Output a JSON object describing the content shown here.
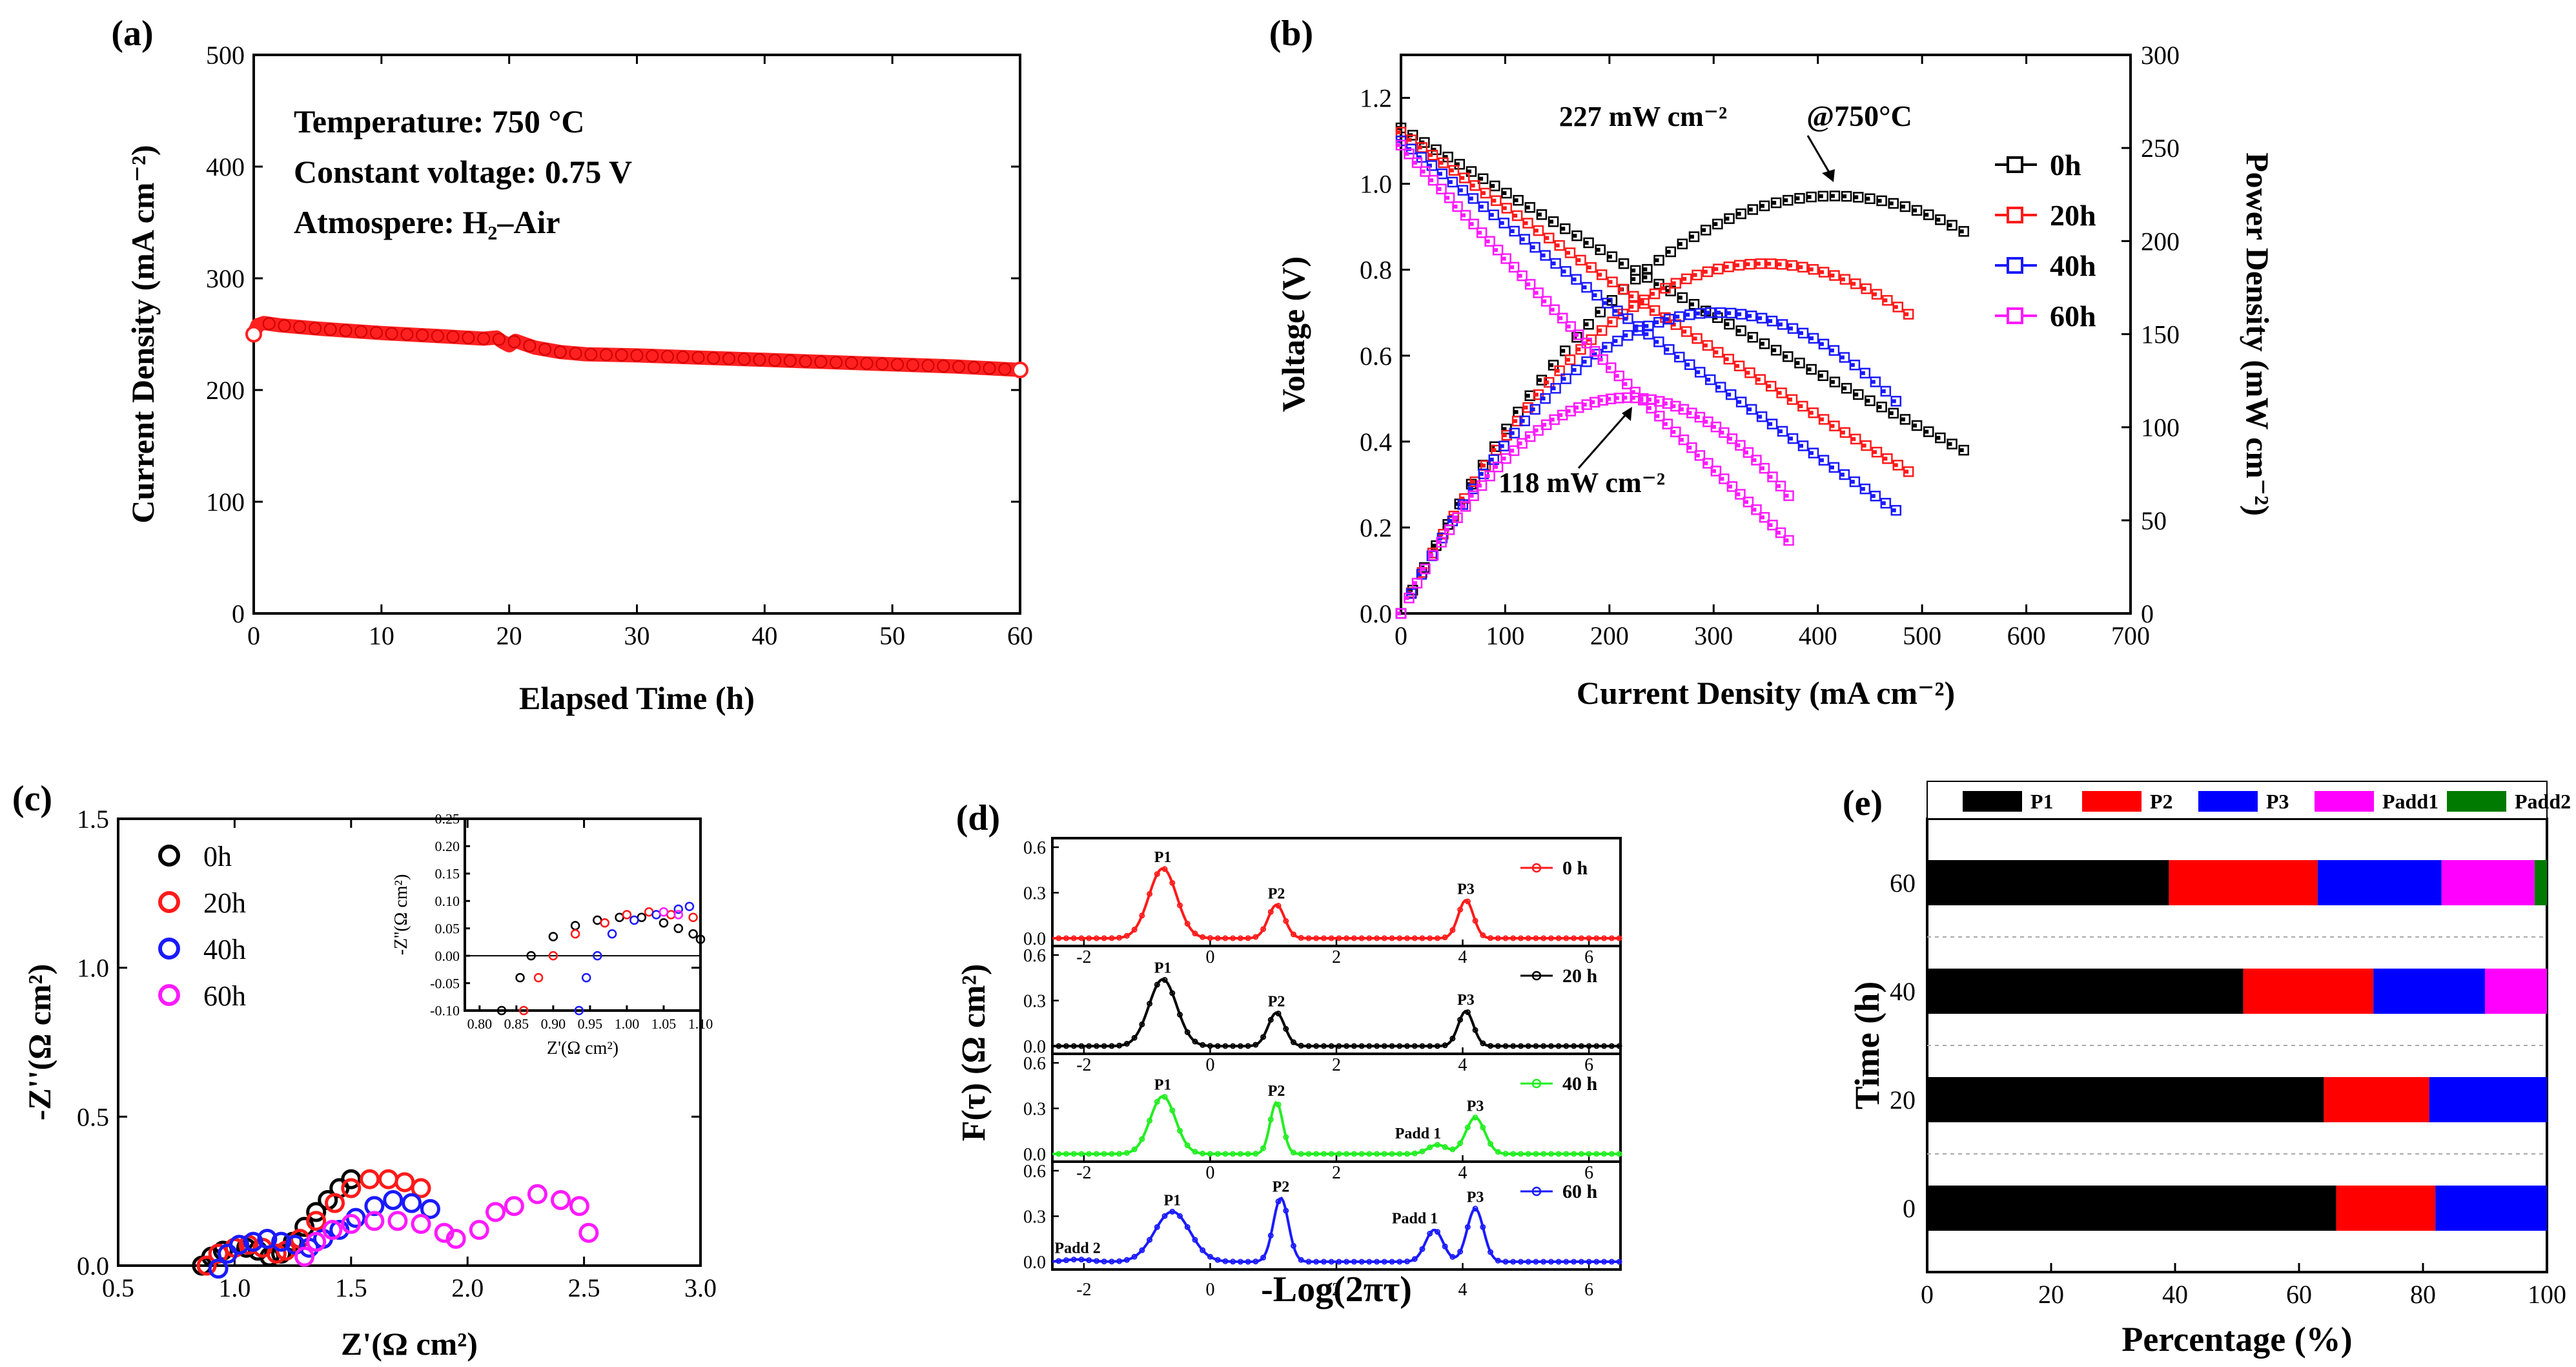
{
  "panels": {
    "a": {
      "label": "(a)",
      "xlabel": "Elapsed Time (h)",
      "ylabel": "Current Density (mA cm⁻²)",
      "xlim": [
        0,
        60
      ],
      "ylim": [
        0,
        500
      ],
      "xticks": [
        0,
        10,
        20,
        30,
        40,
        50,
        60
      ],
      "yticks": [
        0,
        100,
        200,
        300,
        400,
        500
      ],
      "annotations": [
        "Temperature: 750 °C",
        "Constant voltage: 0.75 V",
        "Atmospere: H₂–Air"
      ],
      "color": "#ff2020",
      "series": {
        "x": [
          0,
          0.3,
          0.8,
          2,
          5,
          10,
          15,
          18,
          19,
          19.5,
          20,
          20.5,
          21,
          22,
          24,
          26,
          30,
          35,
          40,
          45,
          50,
          55,
          60
        ],
        "y": [
          250,
          258,
          260,
          258,
          255,
          251,
          248,
          246,
          247,
          243,
          240,
          244,
          242,
          238,
          234,
          232,
          231,
          229,
          227,
          225,
          223,
          221,
          218
        ]
      }
    },
    "b": {
      "label": "(b)",
      "xlabel": "Current Density (mA cm⁻²)",
      "ylabel_left": "Voltage (V)",
      "ylabel_right": "Power Density (mW cm⁻²)",
      "xlim": [
        0,
        700
      ],
      "ylim_left": [
        0,
        1.3
      ],
      "ylim_right": [
        0,
        300
      ],
      "xticks": [
        0,
        100,
        200,
        300,
        400,
        500,
        600,
        700
      ],
      "yticks_left": [
        0.0,
        0.2,
        0.4,
        0.6,
        0.8,
        1.0,
        1.2
      ],
      "yticks_right": [
        0,
        50,
        100,
        150,
        200,
        250,
        300
      ],
      "legend_title": "@750°C",
      "annotations": [
        "227 mW cm⁻²",
        "118 mW cm⁻²"
      ],
      "series": [
        {
          "name": "0h",
          "color": "#000000",
          "imax": 540,
          "ocv": 1.13,
          "vend": 0.38
        },
        {
          "name": "20h",
          "color": "#ff1a1a",
          "imax": 487,
          "ocv": 1.12,
          "vend": 0.33
        },
        {
          "name": "40h",
          "color": "#1a1aff",
          "imax": 475,
          "ocv": 1.1,
          "vend": 0.24
        },
        {
          "name": "60h",
          "color": "#ff1aff",
          "imax": 372,
          "ocv": 1.09,
          "vend": 0.17
        }
      ]
    },
    "c": {
      "label": "(c)",
      "xlabel": "Z'(Ω cm²)",
      "ylabel": "-Z''(Ω cm²)",
      "xlim": [
        0.5,
        3.0
      ],
      "ylim": [
        0,
        1.5
      ],
      "xticks": [
        0.5,
        1.0,
        1.5,
        2.0,
        2.5,
        3.0
      ],
      "yticks": [
        0.0,
        0.5,
        1.0,
        1.5
      ],
      "inset": {
        "xlabel": "Z'(Ω cm²)",
        "ylabel": "-Z''(Ω cm²)",
        "xlim": [
          0.78,
          1.1
        ],
        "ylim": [
          -0.1,
          0.25
        ],
        "xticks": [
          0.8,
          0.85,
          0.9,
          0.95,
          1.0,
          1.05,
          1.1
        ],
        "yticks": [
          -0.1,
          -0.05,
          0.0,
          0.05,
          0.1,
          0.15,
          0.2,
          0.25
        ]
      },
      "series": [
        {
          "name": "0h",
          "color": "#000000",
          "x": [
            0.86,
            0.9,
            0.95,
            1.0,
            1.05,
            1.1,
            1.15,
            1.2,
            1.25,
            1.3,
            1.35,
            1.4,
            1.45,
            1.5
          ],
          "y": [
            0.0,
            0.03,
            0.05,
            0.06,
            0.06,
            0.05,
            0.03,
            0.04,
            0.08,
            0.13,
            0.18,
            0.22,
            0.26,
            0.29
          ]
        },
        {
          "name": "20h",
          "color": "#ff1a1a",
          "x": [
            0.88,
            0.93,
            1.0,
            1.06,
            1.12,
            1.18,
            1.22,
            1.28,
            1.35,
            1.43,
            1.5,
            1.58,
            1.66,
            1.73,
            1.8
          ],
          "y": [
            0.0,
            0.04,
            0.06,
            0.07,
            0.06,
            0.04,
            0.05,
            0.09,
            0.15,
            0.21,
            0.26,
            0.29,
            0.29,
            0.28,
            0.26
          ]
        },
        {
          "name": "40h",
          "color": "#1a1aff",
          "x": [
            0.93,
            0.97,
            1.02,
            1.08,
            1.14,
            1.2,
            1.26,
            1.32,
            1.38,
            1.45,
            1.52,
            1.6,
            1.68,
            1.76,
            1.84
          ],
          "y": [
            -0.01,
            0.04,
            0.07,
            0.08,
            0.09,
            0.08,
            0.07,
            0.06,
            0.09,
            0.12,
            0.16,
            0.2,
            0.22,
            0.21,
            0.19
          ]
        },
        {
          "name": "60h",
          "color": "#ff1aff",
          "x": [
            1.3,
            1.35,
            1.42,
            1.5,
            1.6,
            1.7,
            1.8,
            1.9,
            1.95,
            2.05,
            2.12,
            2.2,
            2.3,
            2.4,
            2.48,
            2.52
          ],
          "y": [
            0.03,
            0.08,
            0.12,
            0.14,
            0.15,
            0.15,
            0.14,
            0.11,
            0.09,
            0.12,
            0.18,
            0.2,
            0.24,
            0.22,
            0.2,
            0.11
          ]
        }
      ]
    },
    "d": {
      "label": "(d)",
      "xlabel": "-Log(2πτ)",
      "ylabel": "F(τ) (Ω cm²)",
      "xlim": [
        -2.5,
        6.5
      ],
      "ylim": [
        0,
        0.6
      ],
      "xticks": [
        -2,
        0,
        2,
        4,
        6
      ],
      "yticks": [
        0.0,
        0.3,
        0.6
      ],
      "subplots": [
        {
          "legend": "0 h",
          "color": "#ff1a1a",
          "peaks": [
            {
              "mu": -0.75,
              "h": 0.46,
              "w": 0.22
            },
            {
              "mu": 1.05,
              "h": 0.22,
              "w": 0.13
            },
            {
              "mu": 4.05,
              "h": 0.25,
              "w": 0.12
            }
          ],
          "labels": [
            "P1",
            "P2",
            "P3"
          ]
        },
        {
          "legend": "20 h",
          "color": "#000000",
          "peaks": [
            {
              "mu": -0.75,
              "h": 0.44,
              "w": 0.22
            },
            {
              "mu": 1.05,
              "h": 0.22,
              "w": 0.13
            },
            {
              "mu": 4.05,
              "h": 0.23,
              "w": 0.12
            }
          ],
          "labels": [
            "P1",
            "P2",
            "P3"
          ]
        },
        {
          "legend": "40 h",
          "color": "#22ee22",
          "peaks": [
            {
              "mu": -0.75,
              "h": 0.38,
              "w": 0.2
            },
            {
              "mu": 1.05,
              "h": 0.34,
              "w": 0.1
            },
            {
              "mu": 3.6,
              "h": 0.06,
              "w": 0.15
            },
            {
              "mu": 4.2,
              "h": 0.24,
              "w": 0.15
            }
          ],
          "labels": [
            "P1",
            "P2",
            "Padd 1",
            "P3"
          ]
        },
        {
          "legend": "60 h",
          "color": "#1a1aff",
          "peaks": [
            {
              "mu": -2.1,
              "h": 0.015,
              "w": 0.2
            },
            {
              "mu": -0.6,
              "h": 0.33,
              "w": 0.28
            },
            {
              "mu": 1.12,
              "h": 0.42,
              "w": 0.12
            },
            {
              "mu": 3.55,
              "h": 0.21,
              "w": 0.14
            },
            {
              "mu": 4.2,
              "h": 0.35,
              "w": 0.13
            }
          ],
          "labels": [
            "Padd 2",
            "P1",
            "P2",
            "Padd 1",
            "P3"
          ]
        }
      ]
    },
    "e": {
      "label": "(e)",
      "xlabel": "Percentage (%)",
      "ylabel": "Time (h)",
      "xlim": [
        0,
        100
      ],
      "xticks": [
        0,
        20,
        40,
        60,
        80,
        100
      ],
      "categories": [
        "60",
        "40",
        "20",
        "0"
      ],
      "legend": [
        {
          "name": "P1",
          "color": "#000000"
        },
        {
          "name": "P2",
          "color": "#ff0000"
        },
        {
          "name": "P3",
          "color": "#0000ff"
        },
        {
          "name": "Padd1",
          "color": "#ff00ff"
        },
        {
          "name": "Padd2",
          "color": "#007a00"
        }
      ]
    }
  },
  "chart_data": [
    {
      "type": "scatter",
      "panel": "a",
      "title": "(a)",
      "xlabel": "Elapsed Time (h)",
      "ylabel": "Current Density (mA cm-2)",
      "xlim": [
        0,
        60
      ],
      "ylim": [
        0,
        500
      ],
      "series": [
        {
          "name": "current density at 0.75 V",
          "x": [
            0,
            0.3,
            0.8,
            2,
            5,
            10,
            15,
            18,
            19,
            19.5,
            20,
            20.5,
            21,
            22,
            24,
            26,
            30,
            35,
            40,
            45,
            50,
            55,
            60
          ],
          "values": [
            250,
            258,
            260,
            258,
            255,
            251,
            248,
            246,
            247,
            243,
            240,
            244,
            242,
            238,
            234,
            232,
            231,
            229,
            227,
            225,
            223,
            221,
            218
          ]
        }
      ]
    },
    {
      "type": "line",
      "panel": "b",
      "title": "(b)",
      "xlabel": "Current Density (mA cm-2)",
      "ylabel": "Voltage (V) / Power Density (mW cm-2)",
      "xlim": [
        0,
        700
      ],
      "series": [
        {
          "name": "0h",
          "ocv": 1.13,
          "max_current": 540,
          "peak_power": 227
        },
        {
          "name": "20h",
          "ocv": 1.12,
          "max_current": 487,
          "peak_power": 192
        },
        {
          "name": "40h",
          "ocv": 1.1,
          "max_current": 475,
          "peak_power": 166
        },
        {
          "name": "60h",
          "ocv": 1.09,
          "max_current": 372,
          "peak_power": 118
        }
      ]
    },
    {
      "type": "scatter",
      "panel": "c",
      "title": "(c)",
      "xlabel": "Z'(Ohm cm2)",
      "ylabel": "-Z''(Ohm cm2)",
      "xlim": [
        0.5,
        3.0
      ],
      "ylim": [
        0,
        1.5
      ]
    },
    {
      "type": "line",
      "panel": "d",
      "title": "(d)",
      "xlabel": "-Log(2 pi tau)",
      "ylabel": "F(tau) (Ohm cm2)",
      "xlim": [
        -2.5,
        6.5
      ],
      "ylim": [
        0,
        0.6
      ]
    },
    {
      "type": "bar",
      "panel": "e",
      "title": "(e)",
      "xlabel": "Percentage (%)",
      "ylabel": "Time (h)",
      "categories": [
        "60",
        "40",
        "20",
        "0"
      ],
      "series": [
        {
          "name": "P1",
          "values": [
            39,
            51,
            64,
            66
          ]
        },
        {
          "name": "P2",
          "values": [
            24,
            21,
            17,
            16
          ]
        },
        {
          "name": "P3",
          "values": [
            20,
            18,
            19,
            18
          ]
        },
        {
          "name": "Padd1",
          "values": [
            15,
            10,
            0,
            0
          ]
        },
        {
          "name": "Padd2",
          "values": [
            2,
            0,
            0,
            0
          ]
        }
      ]
    }
  ]
}
